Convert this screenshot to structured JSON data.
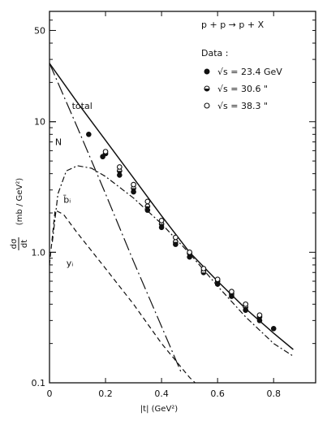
{
  "chart_data": {
    "type": "scatter",
    "x_scale": "linear",
    "y_scale": "log",
    "xlim": [
      0,
      0.95
    ],
    "ylim": [
      0.1,
      70
    ],
    "x_ticks": [
      {
        "value": 0,
        "label": "0"
      },
      {
        "value": 0.2,
        "label": "0.2"
      },
      {
        "value": 0.4,
        "label": "0.4"
      },
      {
        "value": 0.6,
        "label": "0.6"
      },
      {
        "value": 0.8,
        "label": "0.8"
      }
    ],
    "y_ticks": [
      {
        "value": 0.1,
        "label": "0.1"
      },
      {
        "value": 1.0,
        "label": "1.0"
      },
      {
        "value": 10,
        "label": "10"
      },
      {
        "value": 50,
        "label": "50"
      }
    ],
    "xlabel": "|t|  (GeV²)",
    "ylabel_num": "dσ",
    "ylabel_den": "dt",
    "ylabel_unit": "(mb / GeV²)",
    "reaction": "p + p → p + X",
    "legend_title": "Data :",
    "series": [
      {
        "name": "√s = 23.4 GeV",
        "marker": "filled-circle",
        "points": [
          [
            0.14,
            8.0
          ],
          [
            0.19,
            5.4
          ],
          [
            0.25,
            3.9
          ],
          [
            0.3,
            2.9
          ],
          [
            0.35,
            2.1
          ],
          [
            0.4,
            1.55
          ],
          [
            0.45,
            1.15
          ],
          [
            0.5,
            0.92
          ],
          [
            0.55,
            0.72
          ],
          [
            0.6,
            0.57
          ],
          [
            0.65,
            0.46
          ],
          [
            0.7,
            0.36
          ],
          [
            0.75,
            0.3
          ],
          [
            0.8,
            0.26
          ]
        ]
      },
      {
        "name": "√s = 30.6     \"",
        "marker": "half-circle",
        "points": [
          [
            0.2,
            5.7
          ],
          [
            0.25,
            4.2
          ],
          [
            0.3,
            3.1
          ],
          [
            0.35,
            2.25
          ],
          [
            0.4,
            1.65
          ],
          [
            0.45,
            1.2
          ],
          [
            0.5,
            0.98
          ],
          [
            0.55,
            0.7
          ],
          [
            0.6,
            0.6
          ],
          [
            0.65,
            0.48
          ],
          [
            0.7,
            0.38
          ],
          [
            0.75,
            0.32
          ]
        ]
      },
      {
        "name": "√s = 38.3     \"",
        "marker": "open-circle",
        "points": [
          [
            0.2,
            5.9
          ],
          [
            0.25,
            4.5
          ],
          [
            0.3,
            3.3
          ],
          [
            0.35,
            2.45
          ],
          [
            0.4,
            1.75
          ],
          [
            0.45,
            1.3
          ],
          [
            0.5,
            1.0
          ],
          [
            0.55,
            0.75
          ],
          [
            0.6,
            0.62
          ],
          [
            0.65,
            0.5
          ],
          [
            0.7,
            0.4
          ],
          [
            0.75,
            0.33
          ]
        ]
      }
    ],
    "curves": [
      {
        "name": "total",
        "style": "solid",
        "points": [
          [
            0,
            28
          ],
          [
            0.1,
            14
          ],
          [
            0.2,
            7.2
          ],
          [
            0.3,
            3.7
          ],
          [
            0.4,
            1.9
          ],
          [
            0.5,
            1.0
          ],
          [
            0.6,
            0.6
          ],
          [
            0.7,
            0.37
          ],
          [
            0.8,
            0.24
          ],
          [
            0.87,
            0.18
          ]
        ]
      },
      {
        "name": "N",
        "style": "long-dash-dot",
        "points": [
          [
            0,
            28
          ],
          [
            0.1,
            9
          ],
          [
            0.2,
            2.8
          ],
          [
            0.3,
            0.85
          ],
          [
            0.4,
            0.27
          ],
          [
            0.47,
            0.12
          ]
        ]
      },
      {
        "name": "b̄ᵢ",
        "style": "dash-dot",
        "points": [
          [
            0.01,
            1.2
          ],
          [
            0.03,
            2.8
          ],
          [
            0.06,
            4.2
          ],
          [
            0.1,
            4.6
          ],
          [
            0.15,
            4.4
          ],
          [
            0.2,
            3.8
          ],
          [
            0.3,
            2.6
          ],
          [
            0.4,
            1.65
          ],
          [
            0.5,
            0.98
          ],
          [
            0.6,
            0.55
          ],
          [
            0.7,
            0.32
          ],
          [
            0.8,
            0.2
          ],
          [
            0.87,
            0.16
          ]
        ]
      },
      {
        "name": "yᵢ",
        "style": "dashed",
        "points": [
          [
            0,
            0.8
          ],
          [
            0.02,
            2.1
          ],
          [
            0.05,
            1.95
          ],
          [
            0.1,
            1.4
          ],
          [
            0.2,
            0.75
          ],
          [
            0.3,
            0.4
          ],
          [
            0.4,
            0.2
          ],
          [
            0.5,
            0.11
          ],
          [
            0.52,
            0.1
          ]
        ]
      }
    ],
    "grid": false,
    "legend_position": "top-right"
  }
}
